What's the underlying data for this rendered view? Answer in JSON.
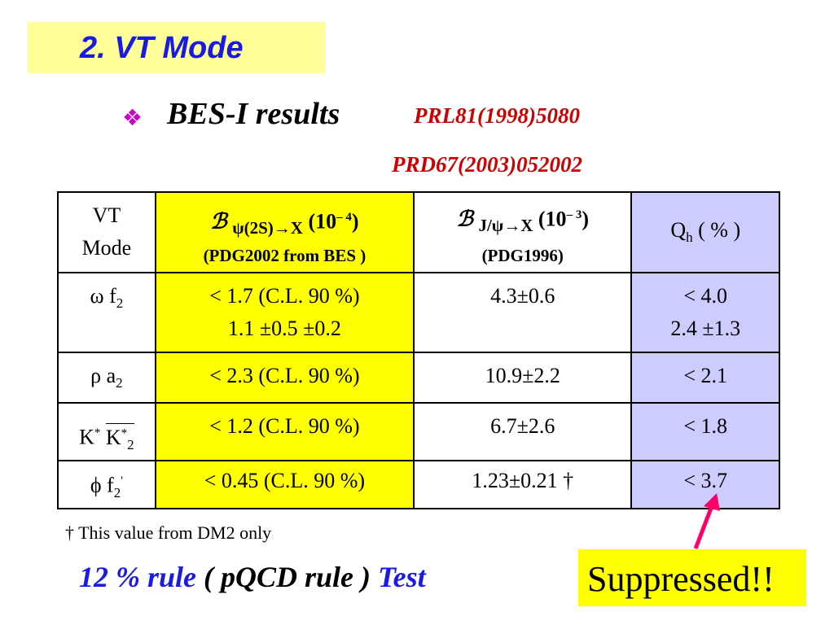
{
  "slide": {
    "title": "2. VT Mode",
    "bullet_icon": "diamond-bullet",
    "subtitle": "BES-I results",
    "ref1": "PRL81(1998)5080",
    "ref2": "PRD67(2003)052002"
  },
  "table": {
    "header": {
      "col1_line1": "VT",
      "col1_line2": "Mode",
      "col2_symbol": "ℬ",
      "col2_sub": "ψ(2S)→X",
      "col2_unit_base": "(10",
      "col2_unit_exp": "– 4",
      "col2_unit_close": ")",
      "col2_line2": "(PDG2002  from BES )",
      "col3_symbol": "ℬ",
      "col3_sub": "J/ψ→X",
      "col3_unit_base": "(10",
      "col3_unit_exp": "– 3",
      "col3_unit_close": ")",
      "col3_line2": "(PDG1996)",
      "col4_main": "Q",
      "col4_sub": "h",
      "col4_rest": " ( % )"
    },
    "rows": [
      {
        "mode_base": "ω f",
        "mode_sub": "2",
        "bes_line1": "< 1.7 (C.L. 90 %)",
        "bes_line2": "1.1 ±0.5 ±0.2",
        "pdg": "4.3±0.6",
        "qh_line1": "< 4.0",
        "qh_line2": "2.4 ±1.3"
      },
      {
        "mode_base": "ρ a",
        "mode_sub": "2",
        "bes_line1": "< 2.3 (C.L. 90 %)",
        "pdg": "10.9±2.2",
        "qh_line1": "< 2.1"
      },
      {
        "mode_k1": "K",
        "mode_k1_sup": "*",
        "mode_k2": "K",
        "mode_k2_sup": "*",
        "mode_sub": "2",
        "bes_line1": "< 1.2 (C.L. 90 %)",
        "pdg": "6.7±2.6",
        "qh_line1": "< 1.8"
      },
      {
        "mode_base": "ϕ f",
        "mode_sub": "2",
        "mode_sup": "'",
        "bes_line1": "< 0.45 (C.L. 90 %)",
        "pdg": "1.23±0.21 †",
        "qh_line1": "< 3.7"
      }
    ]
  },
  "footnote": "† This value from DM2 only",
  "rule": {
    "part1": "12 % rule",
    "part2": " ( pQCD rule ) ",
    "part3": "Test"
  },
  "callout": "Suppressed!!",
  "colors": {
    "title_bg": "#ffff99",
    "title_text": "#1a1ae6",
    "ref_text": "#cc0000",
    "yellow_col": "#ffff00",
    "blue_col": "#ccccff",
    "arrow": "#ff0066"
  }
}
